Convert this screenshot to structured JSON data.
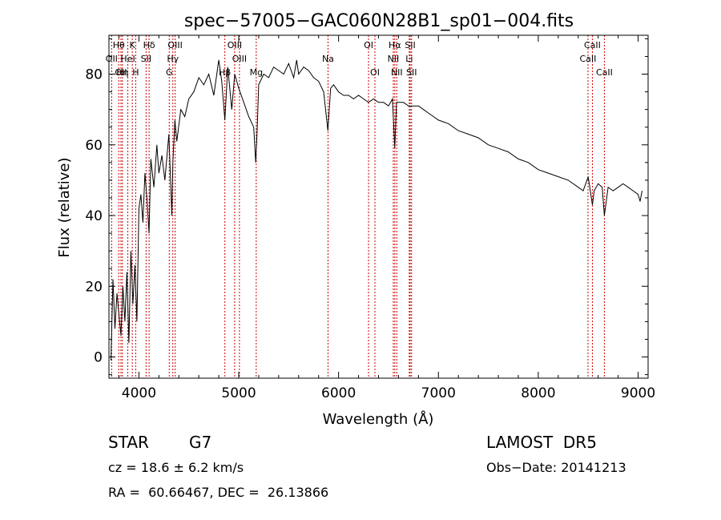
{
  "chart_data": {
    "type": "line",
    "title": "spec−57005−GAC060N28B1_sp01−004.fits",
    "xlabel": "Wavelength (Å)",
    "ylabel": "Flux (relative)",
    "xlim": [
      3700,
      9100
    ],
    "ylim": [
      -6,
      91
    ],
    "x_ticks": [
      4000,
      5000,
      6000,
      7000,
      8000,
      9000
    ],
    "x_tick_labels": [
      "4000",
      "5000",
      "6000",
      "7000",
      "8000",
      "9000"
    ],
    "y_ticks": [
      0,
      20,
      40,
      60,
      80
    ],
    "y_tick_labels": [
      "0",
      "20",
      "40",
      "60",
      "80"
    ],
    "grid": false,
    "line_color": "#000000",
    "marker_color": "#cc0000",
    "series": [
      {
        "x": [
          3720,
          3740,
          3760,
          3780,
          3800,
          3820,
          3840,
          3860,
          3880,
          3900,
          3920,
          3940,
          3960,
          3980,
          4000,
          4020,
          4040,
          4060,
          4080,
          4101,
          4120,
          4150,
          4180,
          4200,
          4230,
          4260,
          4300,
          4330,
          4340,
          4360,
          4380,
          4420,
          4460,
          4500,
          4550,
          4600,
          4650,
          4700,
          4750,
          4800,
          4830,
          4861,
          4890,
          4930,
          4960,
          5000,
          5050,
          5100,
          5150,
          5170,
          5183,
          5200,
          5250,
          5300,
          5350,
          5400,
          5450,
          5500,
          5550,
          5580,
          5600,
          5650,
          5700,
          5750,
          5800,
          5850,
          5893,
          5920,
          5950,
          6000,
          6050,
          6100,
          6150,
          6200,
          6250,
          6300,
          6350,
          6400,
          6450,
          6500,
          6540,
          6563,
          6580,
          6620,
          6650,
          6700,
          6750,
          6800,
          6850,
          6900,
          6950,
          7000,
          7100,
          7200,
          7300,
          7400,
          7500,
          7600,
          7700,
          7800,
          7900,
          8000,
          8100,
          8200,
          8300,
          8400,
          8450,
          8500,
          8542,
          8560,
          8600,
          8640,
          8662,
          8700,
          8750,
          8800,
          8850,
          8900,
          8950,
          9000,
          9020,
          9040
        ],
        "y": [
          -1,
          22,
          8,
          18,
          12,
          6,
          20,
          10,
          24,
          4,
          30,
          15,
          26,
          10,
          42,
          46,
          38,
          52,
          45,
          35,
          56,
          48,
          60,
          52,
          57,
          50,
          63,
          40,
          55,
          67,
          61,
          70,
          68,
          73,
          75,
          79,
          77,
          80,
          74,
          84,
          78,
          67,
          82,
          70,
          80,
          76,
          72,
          68,
          65,
          55,
          63,
          77,
          80,
          79,
          82,
          81,
          80,
          83,
          79,
          84,
          80,
          82,
          81,
          79,
          78,
          75,
          64,
          76,
          77,
          75,
          74,
          74,
          73,
          74,
          73,
          72,
          73,
          72,
          72,
          71,
          73,
          59,
          72,
          72,
          72,
          71,
          71,
          71,
          70,
          69,
          68,
          67,
          66,
          64,
          63,
          62,
          60,
          59,
          58,
          56,
          55,
          53,
          52,
          51,
          50,
          48,
          47,
          51,
          43,
          47,
          49,
          48,
          40,
          48,
          47,
          48,
          49,
          48,
          47,
          46,
          44,
          47
        ]
      }
    ],
    "lines": [
      {
        "x": 3727,
        "label": "OII",
        "row": 2
      },
      {
        "x": 3798,
        "label": "Hθ",
        "row": 1
      },
      {
        "x": 3820,
        "label": "OII",
        "row": 3
      },
      {
        "x": 3835,
        "label": "Hη",
        "row": 3
      },
      {
        "x": 3889,
        "label": "HeI",
        "row": 2
      },
      {
        "x": 3934,
        "label": "K",
        "row": 1
      },
      {
        "x": 3968,
        "label": "H",
        "row": 3
      },
      {
        "x": 4072,
        "label": "SII",
        "row": 2
      },
      {
        "x": 4102,
        "label": "Hδ",
        "row": 1
      },
      {
        "x": 4340,
        "label": "Hγ",
        "row": 2
      },
      {
        "x": 4304,
        "label": "G",
        "row": 3
      },
      {
        "x": 4363,
        "label": "OIII",
        "row": 1
      },
      {
        "x": 4861,
        "label": "Hβ",
        "row": 3
      },
      {
        "x": 4959,
        "label": "OIII",
        "row": 1
      },
      {
        "x": 5007,
        "label": "OIII",
        "row": 2
      },
      {
        "x": 5175,
        "label": "Mg",
        "row": 3
      },
      {
        "x": 5894,
        "label": "Na",
        "row": 2
      },
      {
        "x": 6300,
        "label": "OI",
        "row": 1
      },
      {
        "x": 6364,
        "label": "OI",
        "row": 3
      },
      {
        "x": 6548,
        "label": "NII",
        "row": 2
      },
      {
        "x": 6563,
        "label": "Hα",
        "row": 1
      },
      {
        "x": 6583,
        "label": "NII",
        "row": 3
      },
      {
        "x": 6708,
        "label": "Li",
        "row": 2
      },
      {
        "x": 6717,
        "label": "SII",
        "row": 1
      },
      {
        "x": 6731,
        "label": "SII",
        "row": 3
      },
      {
        "x": 8498,
        "label": "CaII",
        "row": 2
      },
      {
        "x": 8542,
        "label": "CaII",
        "row": 1
      },
      {
        "x": 8662,
        "label": "CaII",
        "row": 3
      }
    ]
  },
  "info": {
    "object_class": "STAR",
    "subclass": "G7",
    "cz": "cz = 18.6 ± 6.2 km/s",
    "ra_dec": "RA =  60.66467, DEC =  26.13866",
    "survey": "LAMOST  DR5",
    "obs_date": "Obs−Date: 20141213"
  }
}
